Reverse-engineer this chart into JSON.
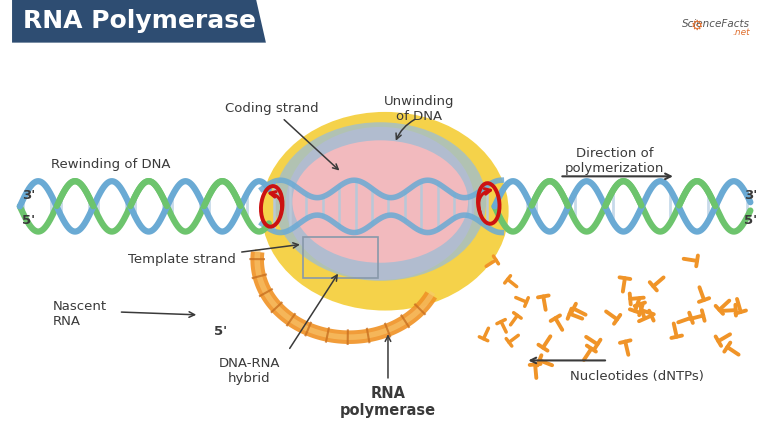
{
  "title": "RNA Polymerase",
  "title_bg_color": "#2e4d72",
  "title_text_color": "#ffffff",
  "bg_color": "#ffffff",
  "dna_blue": "#6aaad4",
  "dna_green": "#6dc46d",
  "dna_rung": "#c8daea",
  "polymerase_yellow": "#f5d040",
  "polymerase_pink": "#f2b8cc",
  "polymerase_blue_ring": "#9bbdd6",
  "nascent_orange": "#f09428",
  "nascent_light": "#f8c870",
  "red_ring": "#cc1111",
  "label_color": "#3a3a3a",
  "gray_label": "#555555",
  "annotations": {
    "coding_strand": "Coding strand",
    "rewinding": "Rewinding of DNA",
    "template_strand": "Template strand",
    "nascent_rna": "Nascent\nRNA",
    "dna_rna_hybrid": "DNA-RNA\nhybrid",
    "rna_polymerase": "RNA\npolymerase",
    "unwinding": "Unwinding\nof DNA",
    "direction": "Direction of\npolymerization",
    "nucleotides": "Nucleotides (dNTPs)"
  },
  "label_3prime_left": "3'",
  "label_5prime_left": "5'",
  "label_3prime_right": "3'",
  "label_5prime_right": "5'",
  "label_5prime_nascent": "5'"
}
